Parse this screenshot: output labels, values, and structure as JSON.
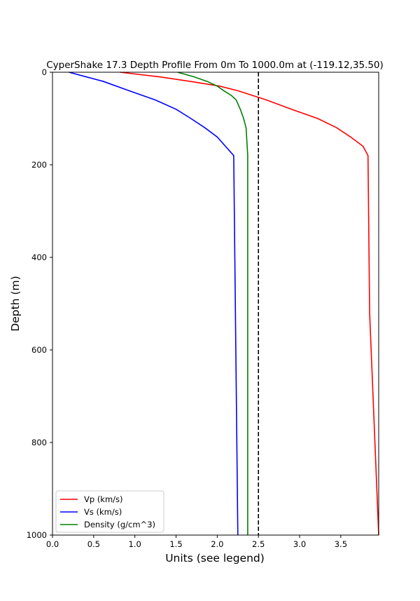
{
  "chart_data": {
    "type": "line",
    "title": "CyperShake 17.3 Depth Profile From 0m To 1000.0m at (-119.12,35.50)",
    "xlabel": "Units (see legend)",
    "ylabel": "Depth (m)",
    "xlim": [
      0,
      3.96
    ],
    "ylim": [
      0,
      1000
    ],
    "y_inverted": true,
    "x_ticks": [
      "0.0",
      "0.5",
      "1.0",
      "1.5",
      "2.0",
      "2.5",
      "3.0",
      "3.5"
    ],
    "x_tick_values": [
      0,
      0.5,
      1.0,
      1.5,
      2.0,
      2.5,
      3.0,
      3.5
    ],
    "y_ticks": [
      "0",
      "200",
      "400",
      "600",
      "800",
      "1000"
    ],
    "y_tick_values": [
      0,
      200,
      400,
      600,
      800,
      1000
    ],
    "grid": false,
    "legend_position": "bottom-left",
    "reference_line": {
      "x": 2.5,
      "style": "dashed",
      "color": "#000000"
    },
    "series": [
      {
        "name": "Vp (km/s)",
        "color": "#ff0000",
        "points": [
          [
            0.82,
            0
          ],
          [
            1.3,
            10
          ],
          [
            1.68,
            20
          ],
          [
            2.03,
            30
          ],
          [
            2.25,
            40
          ],
          [
            2.6,
            60
          ],
          [
            2.9,
            80
          ],
          [
            3.22,
            100
          ],
          [
            3.45,
            120
          ],
          [
            3.62,
            140
          ],
          [
            3.77,
            160
          ],
          [
            3.83,
            180
          ],
          [
            3.85,
            520
          ],
          [
            3.96,
            1000
          ]
        ]
      },
      {
        "name": "Vs (km/s)",
        "color": "#0000ff",
        "points": [
          [
            0.2,
            0
          ],
          [
            0.62,
            20
          ],
          [
            0.93,
            40
          ],
          [
            1.25,
            60
          ],
          [
            1.5,
            80
          ],
          [
            1.68,
            100
          ],
          [
            1.85,
            120
          ],
          [
            2.0,
            140
          ],
          [
            2.1,
            160
          ],
          [
            2.2,
            180
          ],
          [
            2.25,
            1000
          ]
        ]
      },
      {
        "name": "Density (g/cm^3)",
        "color": "#008000",
        "points": [
          [
            1.52,
            0
          ],
          [
            1.72,
            10
          ],
          [
            1.88,
            20
          ],
          [
            2.0,
            30
          ],
          [
            2.08,
            40
          ],
          [
            2.17,
            50
          ],
          [
            2.23,
            60
          ],
          [
            2.28,
            80
          ],
          [
            2.32,
            100
          ],
          [
            2.35,
            120
          ],
          [
            2.36,
            150
          ],
          [
            2.37,
            180
          ],
          [
            2.37,
            1000
          ]
        ]
      }
    ]
  }
}
